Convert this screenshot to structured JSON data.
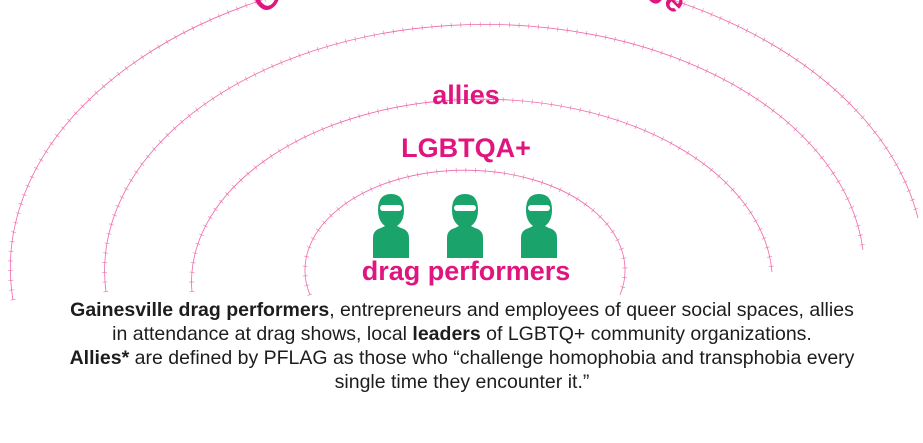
{
  "rings": [
    "Gainesville community at large",
    "allies",
    "LGBTQA+",
    "drag performers"
  ],
  "description": [
    [
      "Gainesville drag performers",
      ", entrepreneurs and employees of queer social spaces, allies in attendance at drag shows, local ",
      "leaders",
      " of LGBTQ+ community organizations."
    ],
    [
      "Allies*",
      " are defined by PFLAG as those who “challenge homophobia and transphobia every single time they encounter it.”"
    ]
  ]
}
